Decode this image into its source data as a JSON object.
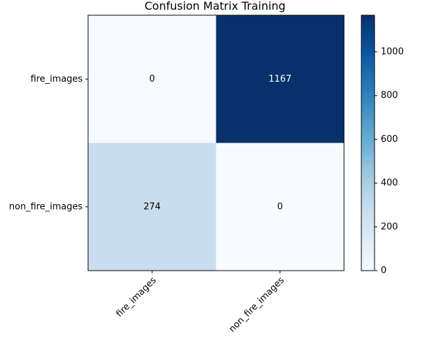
{
  "chart_data": {
    "type": "heatmap",
    "title": "Confusion Matrix Training",
    "row_labels": [
      "fire_images",
      "non_fire_images"
    ],
    "col_labels": [
      "fire_images",
      "non_fire_images"
    ],
    "values": [
      [
        0,
        1167
      ],
      [
        274,
        0
      ]
    ],
    "colormap": "Blues",
    "value_range": [
      0,
      1167
    ],
    "colorbar": {
      "ticks": [
        0,
        200,
        400,
        600,
        800,
        1000
      ],
      "tick_labels": [
        "0",
        "200",
        "400",
        "600",
        "800",
        "1000"
      ],
      "placement": "right"
    },
    "xtick_rotation_deg": 45,
    "grid": false
  },
  "colors": {
    "low": "#f7fbff",
    "high": "#08306b",
    "text_light": "#ffffff",
    "text_dark": "#000000"
  }
}
